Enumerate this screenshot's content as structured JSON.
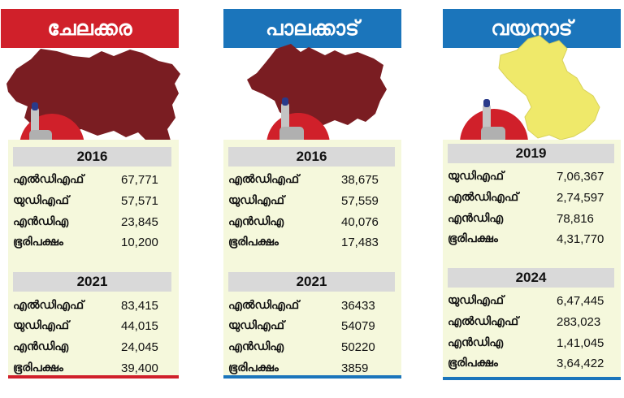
{
  "colors": {
    "red": "#d0202a",
    "blue": "#1b75bb",
    "maroon": "#7a1d22",
    "yellow": "#efe96a",
    "panel": "#f5f8dc",
    "bar": "#d9d9d9"
  },
  "panels": [
    {
      "title": "ചേലക്കര",
      "sections": [
        {
          "year": "2016",
          "rows": [
            {
              "label": "എൽഡിഎഫ്",
              "value": "67,771"
            },
            {
              "label": "യുഡിഎഫ്",
              "value": "57,571"
            },
            {
              "label": "എൻഡിഎ",
              "value": "23,845"
            },
            {
              "label": "ഭൂരിപക്ഷം",
              "value": "10,200"
            }
          ]
        },
        {
          "year": "2021",
          "rows": [
            {
              "label": "എൽഡിഎഫ്",
              "value": "83,415"
            },
            {
              "label": "യുഡിഎഫ്",
              "value": "44,015"
            },
            {
              "label": "എൻഡിഎ",
              "value": "24,045"
            },
            {
              "label": "ഭൂരിപക്ഷം",
              "value": "39,400"
            }
          ]
        }
      ]
    },
    {
      "title": "പാലക്കാട്",
      "sections": [
        {
          "year": "2016",
          "rows": [
            {
              "label": "എൽഡിഎഫ്",
              "value": "38,675"
            },
            {
              "label": "യുഡിഎഫ്",
              "value": "57,559"
            },
            {
              "label": "എൻഡിഎ",
              "value": "40,076"
            },
            {
              "label": "ഭൂരിപക്ഷം",
              "value": "17,483"
            }
          ]
        },
        {
          "year": "2021",
          "rows": [
            {
              "label": "എൽഡിഎഫ്",
              "value": "36433"
            },
            {
              "label": "യുഡിഎഫ്",
              "value": "54079"
            },
            {
              "label": "എൻഡിഎ",
              "value": "50220"
            },
            {
              "label": "ഭൂരിപക്ഷം",
              "value": "3859"
            }
          ]
        }
      ]
    },
    {
      "title": "വയനാട്",
      "sections": [
        {
          "year": "2019",
          "rows": [
            {
              "label": "യുഡിഎഫ്",
              "value": "7,06,367"
            },
            {
              "label": "എൽഡിഎഫ്",
              "value": "2,74,597"
            },
            {
              "label": "എൻഡിഎ",
              "value": "78,816"
            },
            {
              "label": "ഭൂരിപക്ഷം",
              "value": "4,31,770"
            }
          ]
        },
        {
          "year": "2024",
          "rows": [
            {
              "label": "യുഡിഎഫ്",
              "value": "6,47,445"
            },
            {
              "label": "എൽഡിഎഫ്",
              "value": "283,023"
            },
            {
              "label": "എൻഡിഎ",
              "value": "1,41,045"
            },
            {
              "label": "ഭൂരിപക്ഷം",
              "value": "3,64,422"
            }
          ]
        }
      ]
    }
  ]
}
